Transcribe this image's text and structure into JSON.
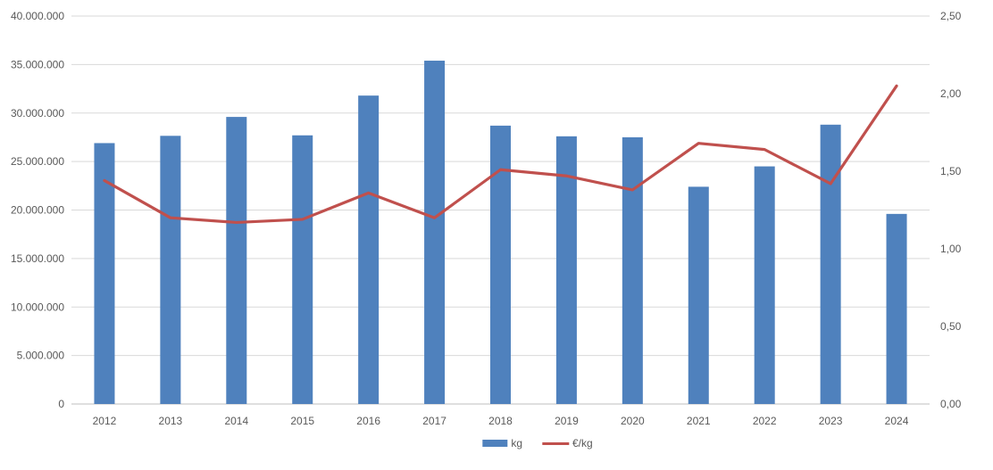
{
  "chart_data": {
    "type": "combo",
    "title": "",
    "categories": [
      "2012",
      "2013",
      "2014",
      "2015",
      "2016",
      "2017",
      "2018",
      "2019",
      "2020",
      "2021",
      "2022",
      "2023",
      "2024"
    ],
    "series": [
      {
        "name": "kg",
        "type": "bar",
        "axis": "left",
        "color": "#4F81BD",
        "values": [
          26900000,
          27650000,
          29600000,
          27700000,
          31800000,
          35400000,
          28700000,
          27600000,
          27500000,
          22400000,
          24500000,
          28800000,
          19600000
        ]
      },
      {
        "name": "€/kg",
        "type": "line",
        "axis": "right",
        "color": "#C0504D",
        "values": [
          1.44,
          1.2,
          1.17,
          1.19,
          1.36,
          1.2,
          1.51,
          1.47,
          1.38,
          1.68,
          1.64,
          1.42,
          2.05
        ]
      }
    ],
    "left_axis": {
      "min": 0,
      "max": 40000000,
      "ticks": [
        "0",
        "5.000.000",
        "10.000.000",
        "15.000.000",
        "20.000.000",
        "25.000.000",
        "30.000.000",
        "35.000.000",
        "40.000.000"
      ]
    },
    "right_axis": {
      "min": 0,
      "max": 2.5,
      "ticks": [
        "0,00",
        "0,50",
        "1,00",
        "1,50",
        "2,00",
        "2,50"
      ]
    },
    "legend": [
      {
        "label": "kg",
        "color": "#4F81BD",
        "type": "bar"
      },
      {
        "label": "€/kg",
        "color": "#C0504D",
        "type": "line"
      }
    ],
    "grid": true,
    "legend_position": "bottom"
  },
  "colors": {
    "grid": "#D9D9D9",
    "axis_line": "#BFBFBF",
    "text": "#595959",
    "background": "#FFFFFF"
  }
}
